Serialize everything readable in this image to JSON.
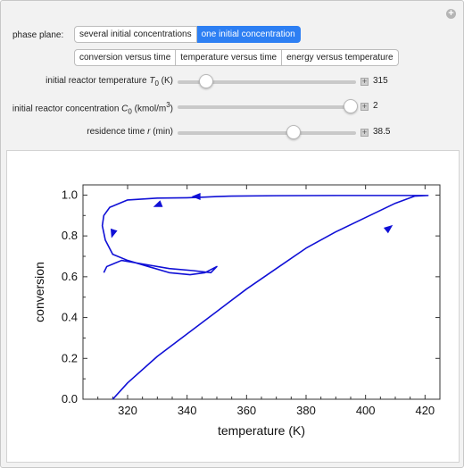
{
  "controls": {
    "phase_plane_label": "phase plane:",
    "phase_buttons": [
      "several initial concentrations",
      "one initial concentration"
    ],
    "phase_active_index": 1,
    "plot_buttons": [
      "conversion versus time",
      "temperature versus time",
      "energy versus temperature"
    ],
    "sliders": [
      {
        "label_prefix": "initial reactor temperature ",
        "symbol": "T",
        "sub": "0",
        "unit_pre": " (K)",
        "sup": "",
        "unit_post": "",
        "value": "315",
        "fraction": 0.16
      },
      {
        "label_prefix": "initial reactor concentration ",
        "symbol": "C",
        "sub": "0",
        "unit_pre": " (kmol/m",
        "sup": "3",
        "unit_post": ")",
        "value": "2",
        "fraction": 0.97
      },
      {
        "label_prefix": "residence time ",
        "symbol": "r",
        "sub": "",
        "unit_pre": " (min)",
        "sup": "",
        "unit_post": "",
        "value": "38.5",
        "fraction": 0.65
      }
    ]
  },
  "chart_data": {
    "type": "line",
    "xlabel": "temperature (K)",
    "ylabel": "conversion",
    "xlim": [
      305,
      425
    ],
    "ylim": [
      0,
      1.05
    ],
    "xticks": [
      320,
      340,
      360,
      380,
      400,
      420
    ],
    "yticks": [
      0.0,
      0.2,
      0.4,
      0.6,
      0.8,
      1.0
    ],
    "xtick_labels": [
      "320",
      "340",
      "360",
      "380",
      "400",
      "420"
    ],
    "ytick_labels": [
      "0.0",
      "0.2",
      "0.4",
      "0.6",
      "0.8",
      "1.0"
    ],
    "line_color": "#1010d6",
    "series": [
      {
        "x": [
          315.0,
          320,
          330,
          340,
          350,
          360,
          370,
          380,
          390,
          400,
          410,
          416.5,
          421.0,
          410,
          390,
          370,
          355,
          350,
          346,
          340,
          330,
          320,
          314,
          312,
          311.5,
          312.5,
          315,
          320,
          327,
          334,
          341,
          346,
          350,
          348,
          342,
          334,
          326,
          318,
          313,
          312
        ],
        "y": [
          0.0,
          0.08,
          0.21,
          0.32,
          0.43,
          0.54,
          0.64,
          0.74,
          0.82,
          0.89,
          0.96,
          0.995,
          0.998,
          0.998,
          0.998,
          0.997,
          0.995,
          0.993,
          0.99,
          0.987,
          0.985,
          0.976,
          0.94,
          0.9,
          0.85,
          0.78,
          0.71,
          0.68,
          0.65,
          0.62,
          0.61,
          0.62,
          0.65,
          0.62,
          0.63,
          0.64,
          0.66,
          0.68,
          0.65,
          0.62
        ]
      }
    ],
    "arrows": [
      {
        "x": 408.0,
        "y": 0.84,
        "dx": 1,
        "dy": 0.8
      },
      {
        "x": 343.0,
        "y": 0.993,
        "dx": -1,
        "dy": 0
      },
      {
        "x": 330.0,
        "y": 0.95,
        "dx": -1,
        "dy": -0.4
      },
      {
        "x": 315.0,
        "y": 0.81,
        "dx": -0.3,
        "dy": -1
      }
    ]
  }
}
